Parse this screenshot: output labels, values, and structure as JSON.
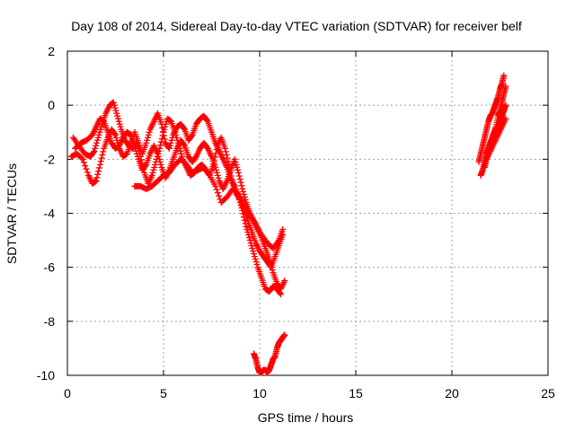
{
  "chart_data": {
    "type": "scatter",
    "title": "Day 108 of 2014, Sidereal Day-to-day VTEC variation (SDTVAR) for receiver belf",
    "xlabel": "GPS time / hours",
    "ylabel": "SDTVAR / TECUs",
    "xlim": [
      0,
      25
    ],
    "ylim": [
      -10,
      2
    ],
    "xticks": [
      0,
      5,
      10,
      15,
      20,
      25
    ],
    "yticks": [
      -10,
      -8,
      -6,
      -4,
      -2,
      0,
      2
    ],
    "grid": true,
    "marker": "+",
    "color": "#ff0000",
    "series": [
      {
        "x": [
          0.2,
          0.5,
          0.8,
          1.1,
          1.3,
          1.5,
          1.7,
          1.9,
          2.1,
          2.3,
          2.5,
          2.7,
          2.9,
          3.1,
          3.3,
          3.5,
          3.7,
          3.9,
          4.1,
          4.3,
          4.5,
          4.7,
          4.9,
          5.1,
          5.3,
          5.5,
          5.7,
          5.9,
          6.1,
          6.3,
          6.5,
          6.7,
          6.9,
          7.1,
          7.3,
          7.5,
          7.7,
          7.9,
          8.1,
          8.3,
          8.5,
          8.7,
          8.9,
          9.1,
          9.3,
          9.5,
          9.7,
          9.9,
          10.1,
          10.3,
          10.5,
          10.7,
          10.9,
          11.1
        ],
        "y": [
          -1.9,
          -1.8,
          -2.0,
          -2.6,
          -2.9,
          -2.8,
          -2.2,
          -1.6,
          -1.2,
          -0.9,
          -1.1,
          -1.6,
          -1.9,
          -1.8,
          -1.4,
          -1.0,
          -1.4,
          -1.8,
          -1.4,
          -0.9,
          -0.6,
          -0.3,
          -0.7,
          -1.4,
          -1.6,
          -1.1,
          -0.8,
          -0.7,
          -0.9,
          -1.3,
          -1.1,
          -0.7,
          -0.5,
          -0.4,
          -0.6,
          -1.0,
          -1.4,
          -1.7,
          -2.0,
          -2.3,
          -2.7,
          -3.0,
          -3.4,
          -3.9,
          -4.5,
          -5.0,
          -5.5,
          -6.0,
          -6.4,
          -6.8,
          -6.9,
          -6.7,
          -6.8,
          -7.0
        ]
      },
      {
        "x": [
          0.3,
          0.6,
          0.9,
          1.2,
          1.4,
          1.6,
          1.8,
          2.0,
          2.2,
          2.4,
          2.6,
          2.8,
          3.0,
          3.2,
          3.4,
          3.6,
          3.8,
          4.0,
          4.2,
          4.4,
          4.6,
          4.8,
          5.0,
          5.2,
          5.4,
          5.6,
          5.8,
          6.0,
          6.2,
          6.4,
          6.6,
          6.8,
          7.0,
          7.2,
          7.4,
          7.6,
          7.8,
          8.0,
          8.2,
          8.4,
          8.6,
          8.8,
          9.0,
          9.2,
          9.4,
          9.6,
          9.8,
          10.0,
          10.2,
          10.4,
          10.6,
          10.8,
          11.0,
          11.2
        ],
        "y": [
          -1.2,
          -1.5,
          -1.8,
          -1.9,
          -1.7,
          -1.2,
          -0.7,
          -0.3,
          0.0,
          0.1,
          -0.4,
          -0.9,
          -1.3,
          -1.5,
          -1.6,
          -1.4,
          -1.9,
          -2.5,
          -2.9,
          -2.6,
          -2.1,
          -1.6,
          -1.0,
          -0.5,
          -0.6,
          -1.0,
          -1.5,
          -2.0,
          -2.3,
          -2.6,
          -2.5,
          -2.3,
          -2.2,
          -2.4,
          -2.6,
          -2.2,
          -1.5,
          -1.2,
          -1.6,
          -2.2,
          -2.9,
          -3.3,
          -3.5,
          -3.9,
          -4.3,
          -4.7,
          -5.1,
          -5.4,
          -5.6,
          -5.8,
          -6.0,
          -5.6,
          -5.2,
          -4.8
        ]
      },
      {
        "x": [
          0.4,
          0.7,
          1.0,
          1.3,
          1.5,
          1.7,
          1.9,
          2.1,
          2.3,
          2.5,
          2.7,
          2.9,
          3.1,
          3.3,
          3.5,
          3.7,
          3.9,
          4.1,
          4.3,
          4.5,
          4.7,
          4.9,
          5.1,
          5.3,
          5.5,
          5.7,
          5.9,
          6.1,
          6.3,
          6.5,
          6.7,
          6.9,
          7.1,
          7.3,
          7.5,
          7.7,
          7.9,
          8.1,
          8.3,
          8.5,
          8.7,
          8.9,
          9.1,
          9.3,
          9.5,
          9.7,
          9.9,
          10.1,
          10.3,
          10.5,
          10.7,
          10.9,
          11.1,
          11.3
        ],
        "y": [
          -1.6,
          -1.4,
          -1.3,
          -1.1,
          -0.8,
          -0.5,
          -0.6,
          -1.0,
          -1.4,
          -1.6,
          -1.5,
          -1.2,
          -1.0,
          -1.1,
          -1.5,
          -2.0,
          -2.4,
          -2.2,
          -1.8,
          -1.5,
          -1.8,
          -2.3,
          -2.7,
          -2.4,
          -2.0,
          -1.6,
          -1.3,
          -1.5,
          -1.9,
          -2.1,
          -1.9,
          -1.6,
          -1.4,
          -1.6,
          -1.9,
          -2.3,
          -2.8,
          -3.1,
          -2.8,
          -2.4,
          -2.0,
          -2.5,
          -3.1,
          -3.6,
          -4.0,
          -4.3,
          -4.6,
          -4.9,
          -5.3,
          -5.7,
          -6.2,
          -6.6,
          -6.8,
          -6.5
        ]
      },
      {
        "x": [
          3.5,
          3.8,
          4.1,
          4.4,
          4.7,
          5.0,
          5.3,
          5.6,
          5.9,
          6.2,
          6.5,
          6.8,
          7.1,
          7.4,
          7.7,
          8.0,
          8.3,
          8.6,
          8.9,
          9.2,
          9.5,
          9.8,
          10.1,
          10.4,
          10.7,
          11.0,
          11.2
        ],
        "y": [
          -3.0,
          -3.0,
          -3.1,
          -3.0,
          -2.8,
          -2.6,
          -2.5,
          -2.2,
          -2.0,
          -2.2,
          -2.5,
          -2.4,
          -2.3,
          -2.6,
          -3.0,
          -3.6,
          -3.4,
          -3.1,
          -3.3,
          -3.7,
          -4.1,
          -4.4,
          -4.8,
          -5.1,
          -5.3,
          -5.0,
          -4.6
        ]
      },
      {
        "x": [
          9.7,
          9.8,
          9.9,
          10.0,
          10.1,
          10.2,
          10.3,
          10.4,
          10.5,
          10.6,
          10.7,
          10.8,
          10.9,
          11.0,
          11.1,
          11.2,
          11.3
        ],
        "y": [
          -9.2,
          -9.4,
          -9.7,
          -9.9,
          -9.9,
          -9.8,
          -9.8,
          -9.9,
          -9.8,
          -9.6,
          -9.4,
          -9.3,
          -9.0,
          -8.8,
          -8.7,
          -8.6,
          -8.5
        ]
      },
      {
        "x": [
          21.4,
          21.5,
          21.6,
          21.7,
          21.8,
          21.9,
          22.0,
          22.1,
          22.2,
          22.3,
          22.4,
          22.5,
          22.6,
          22.7
        ],
        "y": [
          -2.1,
          -1.8,
          -1.5,
          -1.2,
          -0.9,
          -0.6,
          -0.4,
          -0.3,
          -0.1,
          0.1,
          0.3,
          0.6,
          0.8,
          1.1
        ]
      },
      {
        "x": [
          21.5,
          21.6,
          21.7,
          21.8,
          21.9,
          22.0,
          22.1,
          22.2,
          22.3,
          22.4,
          22.5,
          22.6,
          22.7,
          22.8
        ],
        "y": [
          -2.6,
          -2.4,
          -2.1,
          -1.8,
          -1.6,
          -1.4,
          -1.2,
          -1.0,
          -0.9,
          -0.8,
          -0.6,
          -0.4,
          -0.2,
          0.0
        ]
      },
      {
        "x": [
          21.7,
          21.8,
          21.9,
          22.0,
          22.1,
          22.2,
          22.3,
          22.4,
          22.5,
          22.6,
          22.7,
          22.8
        ],
        "y": [
          -2.3,
          -2.0,
          -1.7,
          -1.4,
          -1.2,
          -1.0,
          -0.8,
          -0.4,
          -0.2,
          0.1,
          0.4,
          0.7
        ]
      },
      {
        "x": [
          21.8,
          22.0,
          22.2,
          22.4,
          22.6,
          22.8
        ],
        "y": [
          -2.0,
          -1.7,
          -1.4,
          -1.1,
          -0.8,
          -0.5
        ]
      }
    ]
  }
}
